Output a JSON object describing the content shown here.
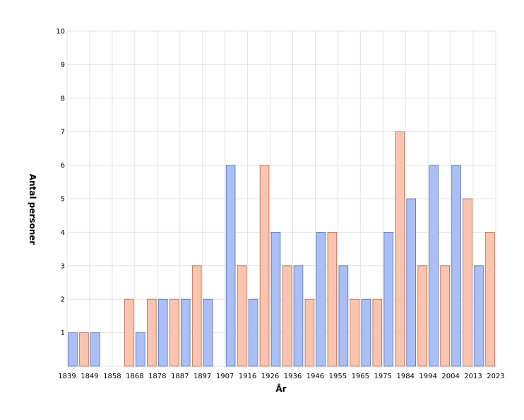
{
  "chart_data": {
    "type": "bar",
    "title": "",
    "xlabel": "År",
    "ylabel": "Antal personer",
    "ylim": [
      0,
      10
    ],
    "yticks": [
      1,
      2,
      3,
      4,
      5,
      6,
      7,
      8,
      9,
      10
    ],
    "grid": true,
    "x_tick_labels": [
      "1839",
      "1849",
      "1858",
      "1868",
      "1878",
      "1887",
      "1897",
      "1907",
      "1916",
      "1926",
      "1936",
      "1946",
      "1955",
      "1965",
      "1975",
      "1984",
      "1994",
      "2004",
      "2013",
      "2023"
    ],
    "colors": {
      "blue": "#aabff5",
      "blue_stroke": "#5a6fb0",
      "salmon": "#fbc4ae",
      "salmon_stroke": "#b06a55"
    },
    "bars": [
      {
        "color": "blue",
        "value": 1
      },
      {
        "color": "salmon",
        "value": 1
      },
      {
        "color": "blue",
        "value": 1
      },
      {
        "color": "salmon",
        "value": 0
      },
      {
        "color": "blue",
        "value": 0
      },
      {
        "color": "salmon",
        "value": 2
      },
      {
        "color": "blue",
        "value": 1
      },
      {
        "color": "salmon",
        "value": 2
      },
      {
        "color": "blue",
        "value": 2
      },
      {
        "color": "salmon",
        "value": 2
      },
      {
        "color": "blue",
        "value": 2
      },
      {
        "color": "salmon",
        "value": 3
      },
      {
        "color": "blue",
        "value": 2
      },
      {
        "color": "salmon",
        "value": 0
      },
      {
        "color": "blue",
        "value": 6
      },
      {
        "color": "salmon",
        "value": 3
      },
      {
        "color": "blue",
        "value": 2
      },
      {
        "color": "salmon",
        "value": 6
      },
      {
        "color": "blue",
        "value": 4
      },
      {
        "color": "salmon",
        "value": 3
      },
      {
        "color": "blue",
        "value": 3
      },
      {
        "color": "salmon",
        "value": 2
      },
      {
        "color": "blue",
        "value": 4
      },
      {
        "color": "salmon",
        "value": 4
      },
      {
        "color": "blue",
        "value": 3
      },
      {
        "color": "salmon",
        "value": 2
      },
      {
        "color": "blue",
        "value": 2
      },
      {
        "color": "salmon",
        "value": 2
      },
      {
        "color": "blue",
        "value": 4
      },
      {
        "color": "salmon",
        "value": 7
      },
      {
        "color": "blue",
        "value": 5
      },
      {
        "color": "salmon",
        "value": 3
      },
      {
        "color": "blue",
        "value": 6
      },
      {
        "color": "salmon",
        "value": 3
      },
      {
        "color": "blue",
        "value": 6
      },
      {
        "color": "salmon",
        "value": 5
      },
      {
        "color": "blue",
        "value": 3
      },
      {
        "color": "salmon",
        "value": 4
      }
    ]
  }
}
